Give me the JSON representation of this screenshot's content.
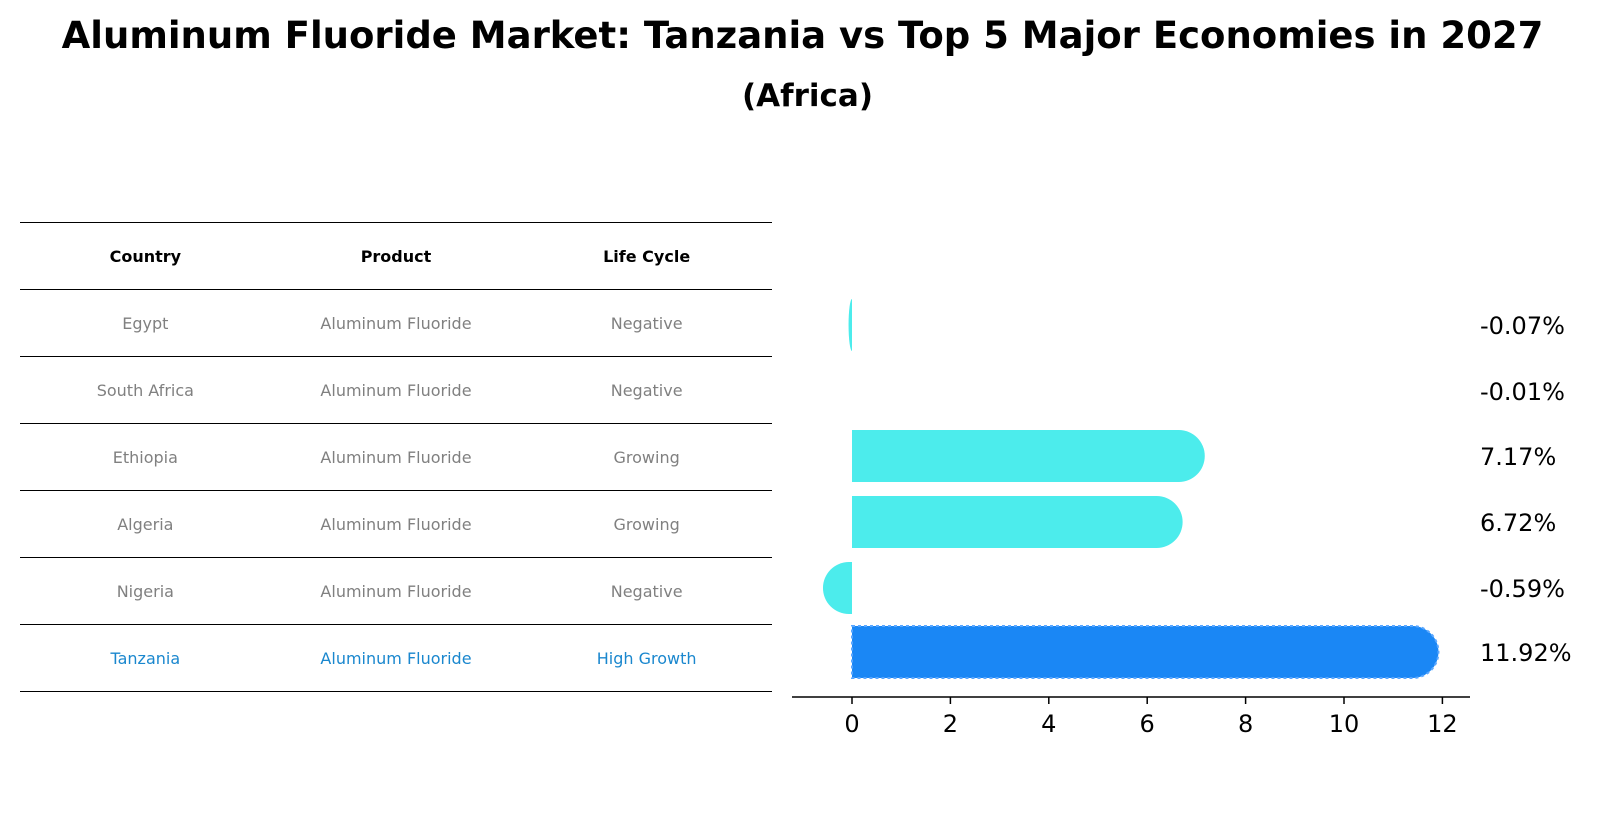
{
  "title": "Aluminum Fluoride Market: Tanzania vs Top 5 Major Economies in 2027",
  "subtitle": "(Africa)",
  "table": {
    "headers": [
      "Country",
      "Product",
      "Life Cycle"
    ],
    "rows": [
      {
        "country": "Egypt",
        "product": "Aluminum Fluoride",
        "life_cycle": "Negative"
      },
      {
        "country": "South Africa",
        "product": "Aluminum Fluoride",
        "life_cycle": "Negative"
      },
      {
        "country": "Ethiopia",
        "product": "Aluminum Fluoride",
        "life_cycle": "Growing"
      },
      {
        "country": "Algeria",
        "product": "Aluminum Fluoride",
        "life_cycle": "Growing"
      },
      {
        "country": "Nigeria",
        "product": "Aluminum Fluoride",
        "life_cycle": "Negative"
      },
      {
        "country": "Tanzania",
        "product": "Aluminum Fluoride",
        "life_cycle": "High Growth"
      }
    ]
  },
  "colors": {
    "bar": "#4cecec",
    "highlight_bar": "#1a87f5",
    "highlight_text": "#1a87ce",
    "muted_text": "#808080"
  },
  "chart_data": {
    "type": "bar",
    "orientation": "horizontal",
    "categories": [
      "Egypt",
      "South Africa",
      "Ethiopia",
      "Algeria",
      "Nigeria",
      "Tanzania"
    ],
    "values": [
      -0.07,
      -0.01,
      7.17,
      6.72,
      -0.59,
      11.92
    ],
    "value_labels": [
      "-0.07%",
      "-0.01%",
      "7.17%",
      "6.72%",
      "-0.59%",
      "11.92%"
    ],
    "highlight": "Tanzania",
    "xlim": [
      -1.2,
      12.6
    ],
    "xticks": [
      0,
      2,
      4,
      6,
      8,
      10,
      12
    ],
    "xlabel": "",
    "ylabel": ""
  }
}
